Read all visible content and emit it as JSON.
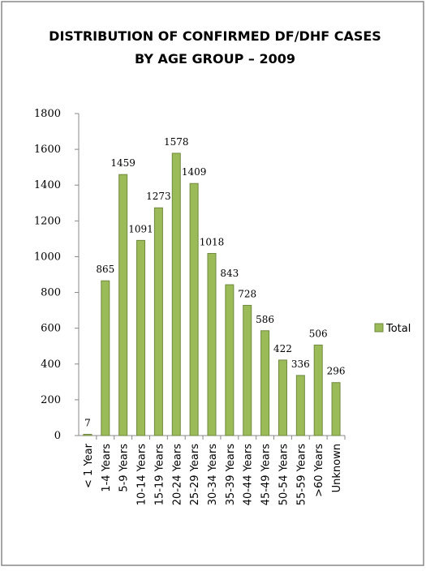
{
  "chart_data": {
    "type": "bar",
    "title": [
      "DISTRIBUTION OF CONFIRMED DF/DHF CASES",
      "BY AGE GROUP – 2009"
    ],
    "categories": [
      "< 1 Year",
      "1-4 Years",
      "5-9 Years",
      "10-14 Years",
      "15-19 Years",
      "20-24 Years",
      "25-29 Years",
      "30-34 Years",
      "35-39 Years",
      "40-44 Years",
      "45-49 Years",
      "50-54 Years",
      "55-59 Years",
      ">60 Years",
      "Unknown"
    ],
    "series": [
      {
        "name": "Total",
        "color": "#9bbb59",
        "values": [
          7,
          865,
          1459,
          1091,
          1273,
          1578,
          1409,
          1018,
          843,
          728,
          586,
          422,
          336,
          506,
          296
        ]
      }
    ],
    "ylim": [
      0,
      1800
    ],
    "yticks": [
      0,
      200,
      400,
      600,
      800,
      1000,
      1200,
      1400,
      1600,
      1800
    ],
    "grid": false,
    "legend": "right",
    "data_labels": true
  }
}
